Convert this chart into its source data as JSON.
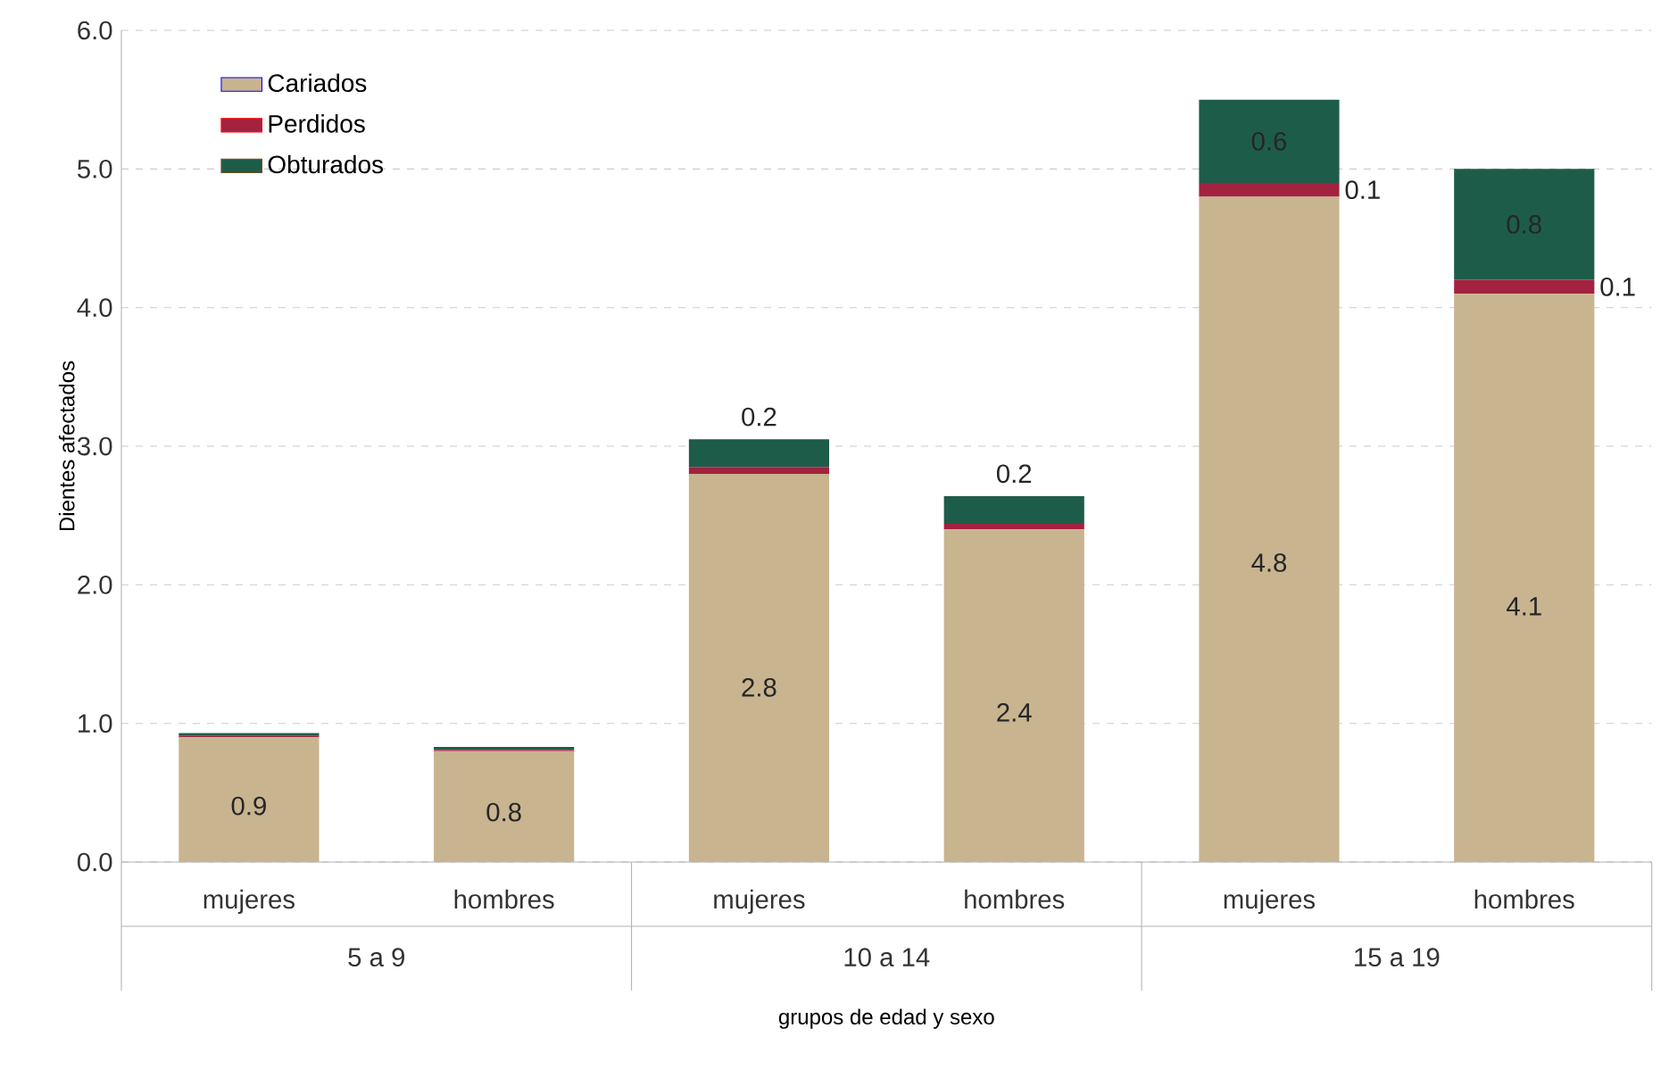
{
  "chart_data": {
    "type": "bar",
    "stacked": true,
    "ylabel": "Dientes afectados",
    "xlabel": "grupos de edad y sexo",
    "categories": [
      "mujeres",
      "hombres",
      "mujeres",
      "hombres",
      "mujeres",
      "hombres"
    ],
    "annotations": [
      "5 a 9",
      "10 a 14",
      "15 a 19"
    ],
    "series": [
      {
        "name": "Cariados",
        "color": "#c8b48f",
        "values": [
          0.9,
          0.8,
          2.8,
          2.4,
          4.8,
          4.1
        ],
        "value_labels": [
          "0.9",
          "0.8",
          "2.8",
          "2.4",
          "4.8",
          "4.1"
        ]
      },
      {
        "name": "Perdidos",
        "color": "#a3223f",
        "values": [
          0.01,
          0.01,
          0.05,
          0.04,
          0.1,
          0.1
        ],
        "value_labels": [
          null,
          null,
          null,
          null,
          "0.1",
          "0.1"
        ]
      },
      {
        "name": "Obturados",
        "color": "#1e5c4a",
        "values": [
          0.02,
          0.02,
          0.2,
          0.2,
          0.6,
          0.8
        ],
        "value_labels": [
          null,
          null,
          "0.2",
          "0.2",
          "0.6",
          "0.8"
        ]
      }
    ],
    "ylim": [
      0,
      6
    ],
    "yticks": [
      {
        "value": 0,
        "label": "0.0"
      },
      {
        "value": 1,
        "label": "1.0"
      },
      {
        "value": 2,
        "label": "2.0"
      },
      {
        "value": 3,
        "label": "3.0"
      },
      {
        "value": 4,
        "label": "4.0"
      },
      {
        "value": 5,
        "label": "5.0"
      },
      {
        "value": 6,
        "label": "6.0"
      }
    ],
    "grid": "y",
    "legend": "top left"
  }
}
